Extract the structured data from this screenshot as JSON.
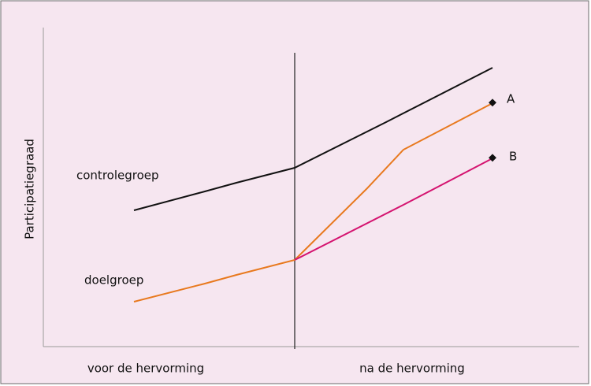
{
  "y_axis_label": "Participatiegraad",
  "labels": {
    "control": "controlegroep",
    "target": "doelgroep",
    "a": "A",
    "b": "B"
  },
  "x_labels": [
    "voor de hervorming",
    "na de hervorming"
  ]
}
